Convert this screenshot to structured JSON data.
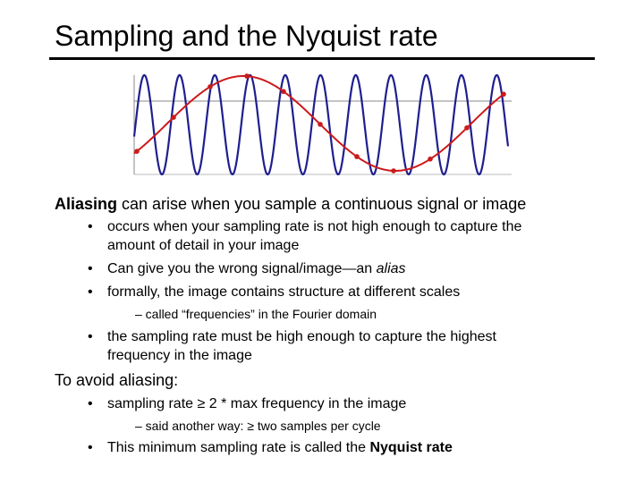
{
  "slide": {
    "title": "Sampling and the Nyquist rate",
    "aliasing": {
      "lead_bold": "Aliasing",
      "lead_rest": " can arise when you sample a continuous signal or image",
      "bullets": [
        {
          "line1": "occurs when your sampling rate is not high enough to capture the",
          "line2": "amount of detail in your image"
        },
        {
          "prefix": "Can give you the wrong signal/image—an ",
          "italic": "alias"
        },
        {
          "text": "formally, the image contains structure at different scales",
          "sub": "– called “frequencies” in the Fourier domain"
        },
        {
          "line1": "the sampling rate must be high enough to capture the highest",
          "line2": "frequency in the image"
        }
      ]
    },
    "avoid": {
      "heading": "To avoid aliasing:",
      "bullets": [
        {
          "text": "sampling rate ≥ 2 * max frequency in the image",
          "sub": "– said another way: ≥ two samples per cycle"
        },
        {
          "prefix": "This minimum sampling rate is called the ",
          "bold": "Nyquist rate"
        }
      ]
    },
    "bullet_symbol": "•"
  },
  "figure": {
    "colors": {
      "signal": "#1f1f8f",
      "samples": "#cc1a1a",
      "axes": "#888888",
      "baseline": "#8a8a8a"
    }
  }
}
